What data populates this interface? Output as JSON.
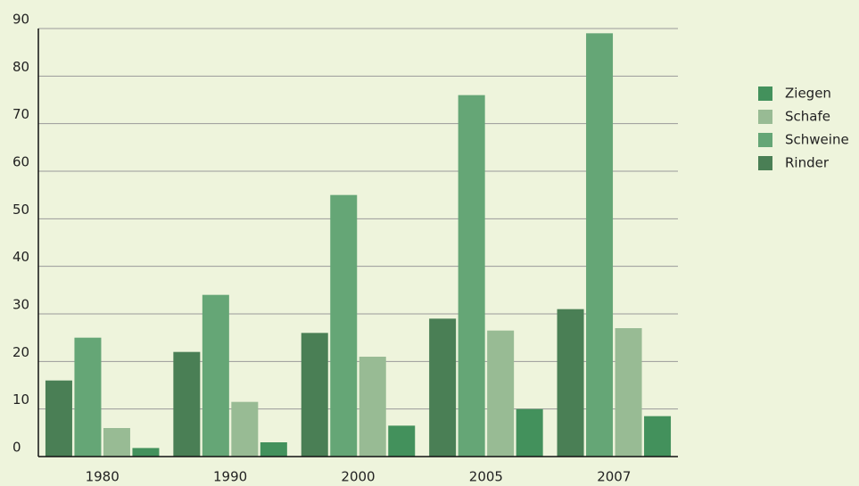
{
  "chart_data": {
    "type": "bar",
    "categories": [
      "1980",
      "1990",
      "2000",
      "2005",
      "2007"
    ],
    "series": [
      {
        "name": "Rinder",
        "color": "#4a7f55",
        "values": [
          16,
          22,
          26,
          29,
          31
        ]
      },
      {
        "name": "Schweine",
        "color": "#65a676",
        "values": [
          25,
          34,
          55,
          76,
          89
        ]
      },
      {
        "name": "Schafe",
        "color": "#98bb94",
        "values": [
          6,
          11.5,
          21,
          26.5,
          27
        ]
      },
      {
        "name": "Ziegen",
        "color": "#43915c",
        "values": [
          1.8,
          3,
          6.5,
          10,
          8.5
        ]
      }
    ],
    "ylim": [
      0,
      90
    ],
    "yticks": [
      0,
      10,
      20,
      30,
      40,
      50,
      60,
      70,
      80,
      90
    ],
    "grid": true,
    "legend": "right"
  }
}
